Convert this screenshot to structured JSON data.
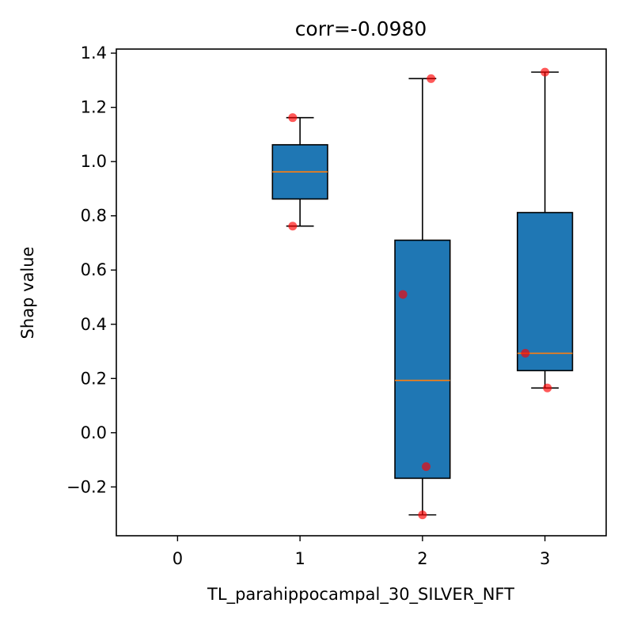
{
  "chart_data": {
    "type": "box",
    "title": "corr=-0.0980",
    "xlabel": "TL_parahippocampal_30_SILVER_NFT",
    "ylabel": "Shap value",
    "xlim": [
      -0.5,
      3.5
    ],
    "ylim": [
      -0.38,
      1.415
    ],
    "xticks": [
      "0",
      "1",
      "2",
      "3"
    ],
    "yticks": [
      {
        "value": -0.2,
        "label": "−0.2"
      },
      {
        "value": 0.0,
        "label": "0.0"
      },
      {
        "value": 0.2,
        "label": "0.2"
      },
      {
        "value": 0.4,
        "label": "0.4"
      },
      {
        "value": 0.6,
        "label": "0.6"
      },
      {
        "value": 0.8,
        "label": "0.8"
      },
      {
        "value": 1.0,
        "label": "1.0"
      },
      {
        "value": 1.2,
        "label": "1.2"
      },
      {
        "value": 1.4,
        "label": "1.4"
      }
    ],
    "grid": false,
    "box_color": "#1f77b4",
    "median_color": "#ff7f0e",
    "point_color": "#ff0000",
    "boxes": [
      {
        "x": 1,
        "whisker_low": 0.762,
        "q1": 0.862,
        "median": 0.962,
        "q3": 1.062,
        "whisker_high": 1.162
      },
      {
        "x": 2,
        "whisker_low": -0.303,
        "q1": -0.168,
        "median": 0.193,
        "q3": 0.71,
        "whisker_high": 1.306
      },
      {
        "x": 3,
        "whisker_low": 0.165,
        "q1": 0.229,
        "median": 0.293,
        "q3": 0.812,
        "whisker_high": 1.33
      }
    ],
    "points": [
      {
        "x": 0.94,
        "y": 1.162
      },
      {
        "x": 0.94,
        "y": 0.762
      },
      {
        "x": 2.07,
        "y": 1.306
      },
      {
        "x": 1.84,
        "y": 0.51
      },
      {
        "x": 2.03,
        "y": -0.125
      },
      {
        "x": 2.0,
        "y": -0.303
      },
      {
        "x": 3.0,
        "y": 1.33
      },
      {
        "x": 2.84,
        "y": 0.293
      },
      {
        "x": 3.02,
        "y": 0.165
      }
    ]
  }
}
